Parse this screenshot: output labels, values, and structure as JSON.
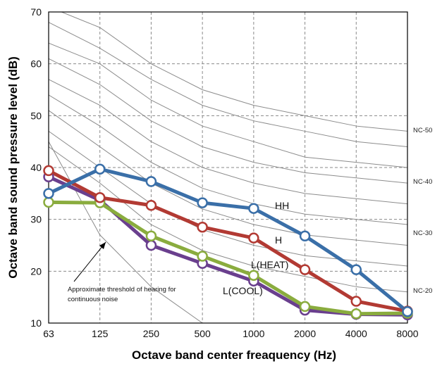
{
  "chart_data": {
    "type": "line",
    "xlabel": "Octave band center freaquency (Hz)",
    "ylabel": "Octave band sound pressure level (dB)",
    "categories": [
      "63",
      "125",
      "250",
      "500",
      "1000",
      "2000",
      "4000",
      "8000"
    ],
    "ylim": [
      10,
      70
    ],
    "yticks": [
      10,
      20,
      30,
      40,
      50,
      60,
      70
    ],
    "grid": true,
    "series": [
      {
        "name": "HH",
        "color": "#3a6fa8",
        "values": [
          35.0,
          39.7,
          37.3,
          33.2,
          32.1,
          26.8,
          20.3,
          12.2
        ]
      },
      {
        "name": "H",
        "color": "#b23a33",
        "values": [
          39.4,
          34.2,
          32.7,
          28.5,
          26.4,
          20.3,
          14.2,
          12.3
        ]
      },
      {
        "name": "L(HEAT)",
        "color": "#8aac3e",
        "values": [
          33.3,
          33.2,
          26.8,
          22.9,
          19.2,
          13.2,
          11.8,
          11.9
        ]
      },
      {
        "name": "L(COOL)",
        "color": "#6a3f8e",
        "values": [
          38.2,
          33.7,
          25.0,
          21.5,
          18.1,
          12.5,
          11.7,
          11.6
        ]
      }
    ],
    "nc_curves": [
      {
        "name": "NC-50",
        "values": [
          71,
          67,
          60,
          55,
          52,
          50,
          48,
          47
        ]
      },
      {
        "name": "",
        "values": [
          68,
          63,
          57,
          52,
          49,
          47,
          45,
          44
        ]
      },
      {
        "name": "NC-40",
        "values": [
          64,
          60,
          53,
          48,
          45,
          42,
          41,
          40
        ]
      },
      {
        "name": "",
        "values": [
          61,
          56,
          49,
          44,
          41,
          39,
          38,
          37
        ]
      },
      {
        "name": "",
        "values": [
          57,
          52,
          45,
          40,
          37,
          35,
          34,
          33
        ]
      },
      {
        "name": "NC-30",
        "values": [
          54,
          48,
          41,
          36,
          33,
          31,
          30,
          29
        ]
      },
      {
        "name": "",
        "values": [
          51,
          44,
          37,
          32,
          29,
          27,
          26,
          25
        ]
      },
      {
        "name": "",
        "values": [
          47,
          40,
          33,
          28,
          25,
          23,
          22,
          21
        ]
      },
      {
        "name": "NC-20",
        "values": [
          44,
          37,
          29,
          24,
          21,
          19,
          17,
          16
        ]
      }
    ],
    "threshold_curve": {
      "values": [
        45,
        27,
        17,
        10
      ]
    },
    "annotations": [
      {
        "text": "Approximate threshold of hearing for",
        "line": 1
      },
      {
        "text": "continuous noise",
        "line": 2
      }
    ]
  }
}
